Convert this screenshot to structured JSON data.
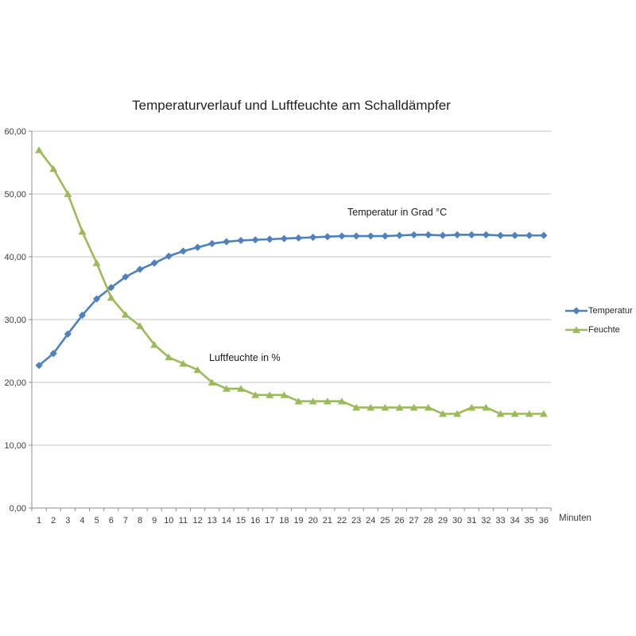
{
  "chart": {
    "title": "Temperaturverlauf und Luftfeuchte am Schalldämpfer",
    "x_axis_label": "Minuten",
    "annotations": [
      {
        "text": "Temperatur in Grad °C"
      },
      {
        "text": "Luftfeuchte in %"
      }
    ]
  },
  "colors": {
    "temperatur": "#4F81BD",
    "feuchte": "#9BBB59",
    "gridline": "#C4C4C4",
    "axis": "#8C8C8C",
    "tick_text": "#3B3B3B",
    "title_text": "#1F1F1F"
  },
  "chart_data": {
    "type": "line",
    "title": "Temperaturverlauf und Luftfeuchte am Schalldämpfer",
    "xlabel": "Minuten",
    "ylabel": "",
    "ylim": [
      0,
      60
    ],
    "grid": true,
    "legend_position": "right",
    "x": [
      1,
      2,
      3,
      4,
      5,
      6,
      7,
      8,
      9,
      10,
      11,
      12,
      13,
      14,
      15,
      16,
      17,
      18,
      19,
      20,
      21,
      22,
      23,
      24,
      25,
      26,
      27,
      28,
      29,
      30,
      31,
      32,
      33,
      34,
      35,
      36
    ],
    "yticks": [
      {
        "value": 0,
        "label": "0,00"
      },
      {
        "value": 10,
        "label": "10,00"
      },
      {
        "value": 20,
        "label": "20,00"
      },
      {
        "value": 30,
        "label": "30,00"
      },
      {
        "value": 40,
        "label": "40,00"
      },
      {
        "value": 50,
        "label": "50,00"
      },
      {
        "value": 60,
        "label": "60,00"
      }
    ],
    "series": [
      {
        "name": "Temperatur",
        "color": "#4F81BD",
        "marker": "diamond",
        "values": [
          22.7,
          24.6,
          27.7,
          30.7,
          33.3,
          35.1,
          36.8,
          38.0,
          39.0,
          40.1,
          40.9,
          41.5,
          42.1,
          42.4,
          42.6,
          42.7,
          42.8,
          42.9,
          43.0,
          43.1,
          43.2,
          43.3,
          43.3,
          43.3,
          43.3,
          43.4,
          43.5,
          43.5,
          43.4,
          43.5,
          43.5,
          43.5,
          43.4,
          43.4,
          43.4,
          43.4
        ]
      },
      {
        "name": "Feuchte",
        "color": "#9BBB59",
        "marker": "triangle",
        "values": [
          57,
          54,
          50,
          44,
          39,
          33.5,
          30.8,
          29,
          26,
          24,
          23,
          22,
          20,
          19,
          19,
          18,
          18,
          18,
          17,
          17,
          17,
          17,
          16,
          16,
          16,
          16,
          16,
          16,
          15,
          15,
          16,
          16,
          15,
          15,
          15,
          15
        ]
      }
    ]
  }
}
